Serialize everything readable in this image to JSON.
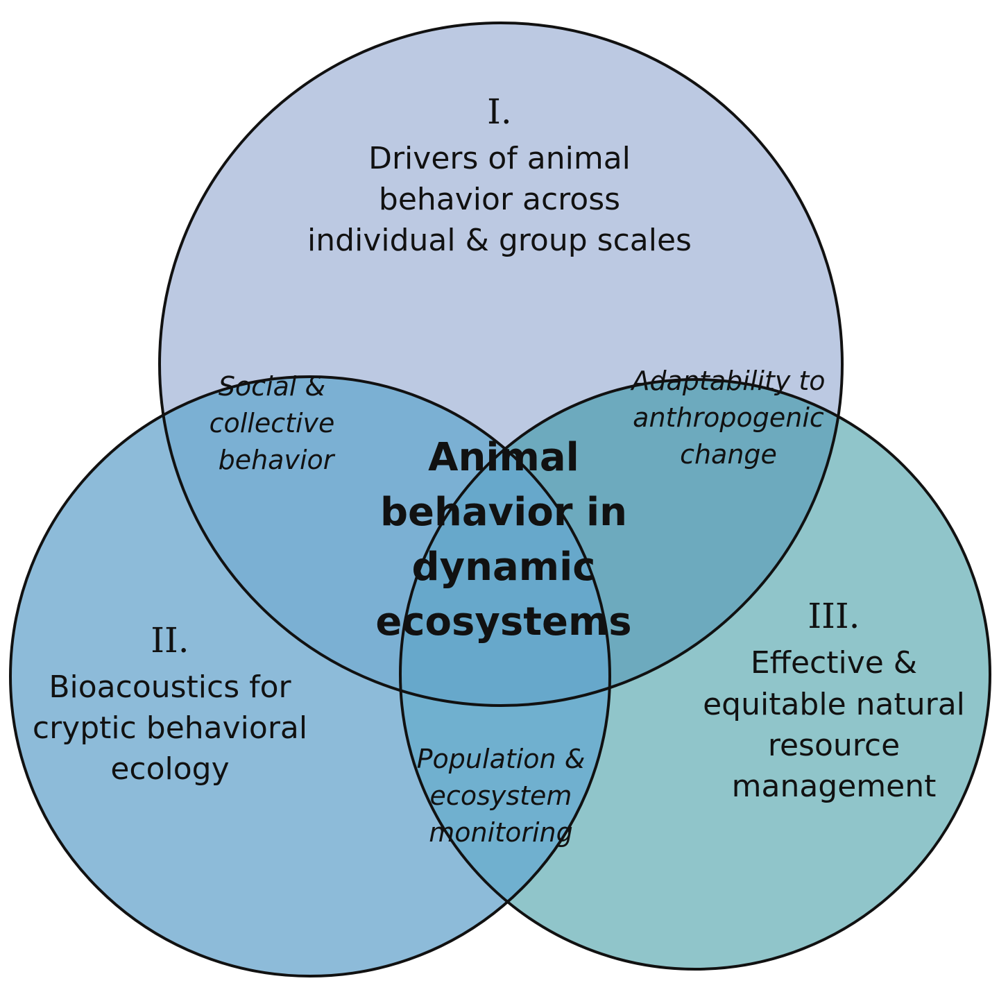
{
  "colors": {
    "circle_one": "#bcc9e2",
    "circle_two": "#8dbbd9",
    "circle_three": "#90c5ca",
    "overlap_one_two": "#7bb0d3",
    "overlap_one_three": "#6daabe",
    "overlap_two_three": "#70b0cf",
    "overlap_center": "#67a8cb",
    "outline": "#111111"
  },
  "circles": {
    "one": {
      "numeral": "I.",
      "lines": [
        "Drivers of animal",
        "behavior across",
        "individual & group scales"
      ]
    },
    "two": {
      "numeral": "II.",
      "lines": [
        "Bioacoustics for",
        "cryptic behavioral",
        "ecology"
      ]
    },
    "three": {
      "numeral": "III.",
      "lines": [
        "Effective &",
        "equitable natural",
        "resource",
        "management"
      ]
    }
  },
  "overlaps": {
    "one_two": [
      "Social &",
      "collective",
      "behavior"
    ],
    "one_three": [
      "Adaptability to",
      "anthropogenic",
      "change"
    ],
    "two_three": [
      "Population &",
      "ecosystem",
      "monitoring"
    ],
    "center": [
      "Animal",
      "behavior in",
      "dynamic",
      "ecosystems"
    ]
  }
}
